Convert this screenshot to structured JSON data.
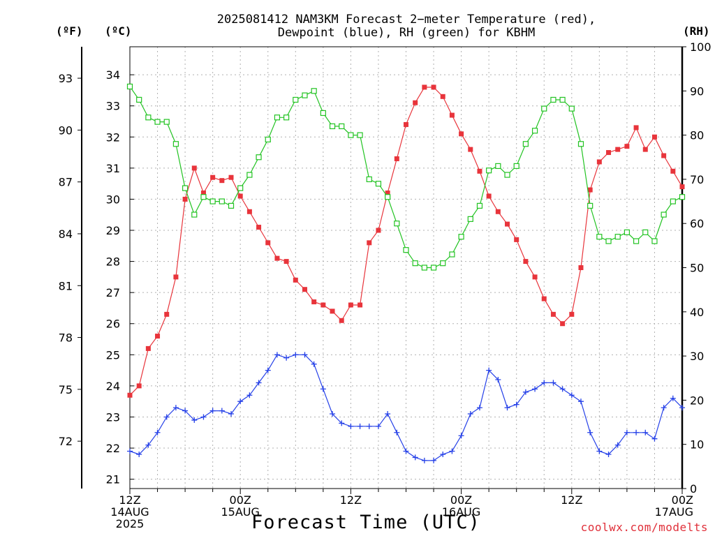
{
  "title_line1": "2025081412 NAM3KM Forecast 2−meter Temperature (red),",
  "title_line2": "Dewpoint (blue), RH (green) for KBHM",
  "units": {
    "fahrenheit": "(ºF)",
    "celsius": "(ºC)",
    "rh": "(RH)"
  },
  "xlabel": "Forecast Time (UTC)",
  "credit": "coolwx.com/modelts",
  "chart_data": {
    "type": "line",
    "hours": [
      0,
      1,
      2,
      3,
      4,
      5,
      6,
      7,
      8,
      9,
      10,
      11,
      12,
      13,
      14,
      15,
      16,
      17,
      18,
      19,
      20,
      21,
      22,
      23,
      24,
      25,
      26,
      27,
      28,
      29,
      30,
      31,
      32,
      33,
      34,
      35,
      36,
      37,
      38,
      39,
      40,
      41,
      42,
      43,
      44,
      45,
      46,
      47,
      48,
      49,
      50,
      51,
      52,
      53,
      54,
      55,
      56,
      57,
      58,
      59,
      60
    ],
    "x_ticks": [
      {
        "hour": 0,
        "label": [
          "12Z",
          "14AUG",
          "2025"
        ]
      },
      {
        "hour": 12,
        "label": [
          "00Z",
          "15AUG"
        ]
      },
      {
        "hour": 24,
        "label": [
          "12Z"
        ]
      },
      {
        "hour": 36,
        "label": [
          "00Z",
          "16AUG"
        ]
      },
      {
        "hour": 48,
        "label": [
          "12Z"
        ]
      },
      {
        "hour": 60,
        "label": [
          "00Z",
          "17AUG"
        ]
      }
    ],
    "ylim_celsius": [
      20.7,
      34.9
    ],
    "ylim_rh": [
      0,
      100
    ],
    "celsius_ticks": [
      21,
      22,
      23,
      24,
      25,
      26,
      27,
      28,
      29,
      30,
      31,
      32,
      33,
      34
    ],
    "fahrenheit_ticks": [
      72,
      75,
      78,
      81,
      84,
      87,
      90,
      93
    ],
    "rh_ticks": [
      0,
      10,
      20,
      30,
      40,
      50,
      60,
      70,
      80,
      90,
      100
    ],
    "grid": true,
    "series": [
      {
        "name": "Temperature",
        "unit": "C",
        "color": "#e8343b",
        "marker": "filled-square",
        "values": [
          23.7,
          24.0,
          25.2,
          25.6,
          26.3,
          27.5,
          30.0,
          31.0,
          30.2,
          30.7,
          30.6,
          30.7,
          30.1,
          29.6,
          29.1,
          28.6,
          28.1,
          28.0,
          27.4,
          27.1,
          26.7,
          26.6,
          26.4,
          26.1,
          26.6,
          26.6,
          28.6,
          29.0,
          30.2,
          31.3,
          32.4,
          33.1,
          33.6,
          33.6,
          33.3,
          32.7,
          32.1,
          31.6,
          30.9,
          30.1,
          29.6,
          29.2,
          28.7,
          28.0,
          27.5,
          26.8,
          26.3,
          26.0,
          26.3,
          27.8,
          30.3,
          31.2,
          31.5,
          31.6,
          31.7,
          32.3,
          31.6,
          32.0,
          31.4,
          30.9,
          30.4
        ]
      },
      {
        "name": "Dewpoint",
        "unit": "C",
        "color": "#2540e8",
        "marker": "plus",
        "values": [
          21.9,
          21.8,
          22.1,
          22.5,
          23.0,
          23.3,
          23.2,
          22.9,
          23.0,
          23.2,
          23.2,
          23.1,
          23.5,
          23.7,
          24.1,
          24.5,
          25.0,
          24.9,
          25.0,
          25.0,
          24.7,
          23.9,
          23.1,
          22.8,
          22.7,
          22.7,
          22.7,
          22.7,
          23.1,
          22.5,
          21.9,
          21.7,
          21.6,
          21.6,
          21.8,
          21.9,
          22.4,
          23.1,
          23.3,
          24.5,
          24.2,
          23.3,
          23.4,
          23.8,
          23.9,
          24.1,
          24.1,
          23.9,
          23.7,
          23.5,
          22.5,
          21.9,
          21.8,
          22.1,
          22.5,
          22.5,
          22.5,
          22.3,
          23.3,
          23.6,
          23.3
        ]
      },
      {
        "name": "RH",
        "unit": "%",
        "color": "#22c322",
        "marker": "open-square",
        "values": [
          91,
          88,
          84,
          83,
          83,
          78,
          68,
          62,
          66,
          65,
          65,
          64,
          68,
          71,
          75,
          79,
          84,
          84,
          88,
          89,
          90,
          85,
          82,
          82,
          80,
          80,
          70,
          69,
          66,
          60,
          54,
          51,
          50,
          50,
          51,
          53,
          57,
          61,
          64,
          72,
          73,
          71,
          73,
          78,
          81,
          86,
          88,
          88,
          86,
          78,
          64,
          57,
          56,
          57,
          58,
          56,
          58,
          56,
          62,
          65,
          66
        ]
      }
    ]
  }
}
